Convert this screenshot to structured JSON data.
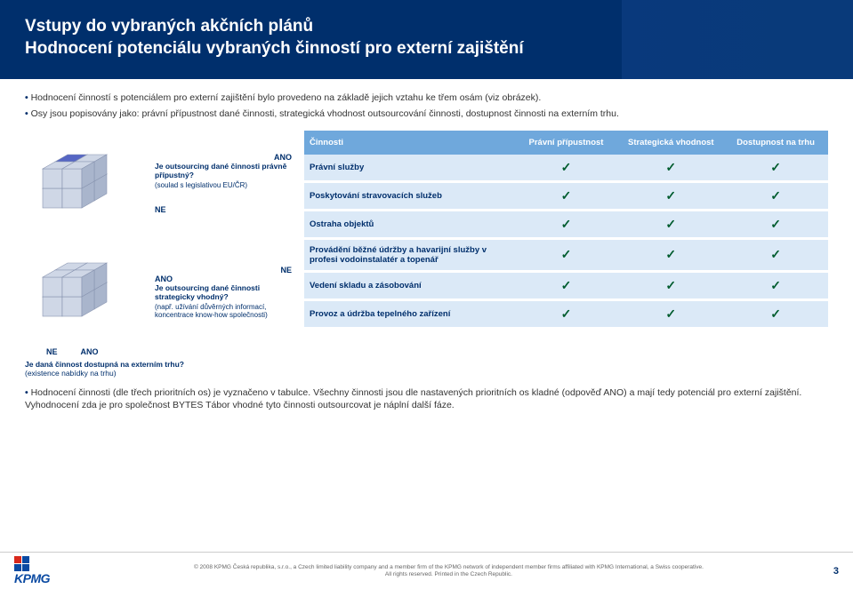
{
  "header": {
    "title_line1": "Vstupy do vybraných akčních plánů",
    "title_line2": "Hodnocení potenciálu vybraných činností pro externí zajištění"
  },
  "bullets": [
    "Hodnocení činností s potenciálem pro externí zajištění bylo provedeno na základě jejich vztahu ke třem osám (viz obrázek).",
    "Osy jsou popisovány jako: právní přípustnost dané činnosti, strategická vhodnost outsourcování činnosti, dostupnost činnosti na externím trhu."
  ],
  "cube": {
    "top": {
      "ano": "ANO",
      "ne": "NE",
      "q_title": "Je outsourcing dané činnosti právně přípustný?",
      "q_sub": "(soulad s legislativou EU/ČR)"
    },
    "bottom": {
      "ne": "NE",
      "ano": "ANO",
      "ne_left": "NE",
      "ano_right": "ANO",
      "q_title": "Je outsourcing dané činnosti strategicky vhodný?",
      "q_sub": "(např. užívání důvěrných informací, koncentrace know-how společnosti)",
      "avail_title": "Je daná činnost dostupná na externím trhu?",
      "avail_sub": "(existence nabídky na trhu)"
    },
    "colors": {
      "cube_fill": "#cfd7e6",
      "cube_dark": "#a9b5cc",
      "cube_highlight": "#3a4aa8",
      "cube_highlight_top": "#5666c4",
      "cube_highlight_side": "#2a3a88",
      "stroke": "#8894b0"
    }
  },
  "table": {
    "headers": [
      "Činnosti",
      "Právní přípustnost",
      "Strategická vhodnost",
      "Dostupnost na trhu"
    ],
    "rows": [
      {
        "activity": "Právní služby",
        "legal": true,
        "strategic": true,
        "market": true
      },
      {
        "activity": "Poskytování stravovacích služeb",
        "legal": true,
        "strategic": true,
        "market": true
      },
      {
        "activity": "Ostraha objektů",
        "legal": true,
        "strategic": true,
        "market": true
      },
      {
        "activity": "Provádění běžné údržby a havarijní služby v profesi vodoinstalatér a topenář",
        "legal": true,
        "strategic": true,
        "market": true
      },
      {
        "activity": "Vedení skladu a zásobování",
        "legal": true,
        "strategic": true,
        "market": true
      },
      {
        "activity": "Provoz a údržba tepelného zařízení",
        "legal": true,
        "strategic": true,
        "market": true
      }
    ],
    "check_glyph": "✓",
    "col_widths": [
      "40%",
      "20%",
      "20%",
      "20%"
    ]
  },
  "summary": "Hodnocení činnosti (dle třech prioritních os) je vyznačeno v tabulce. Všechny činnosti jsou dle nastavených prioritních os kladné (odpověď ANO) a mají tedy potenciál pro externí zajištění. Vyhodnocení zda je pro společnost BYTES Tábor vhodné tyto činnosti outsourcovat je náplní další fáze.",
  "footer": {
    "logo_text": "KPMG",
    "copyright_line1": "© 2008 KPMG Česká republika, s.r.o., a Czech limited liability company and a member firm of the KPMG network of independent member firms affiliated with KPMG International, a Swiss cooperative.",
    "copyright_line2": "All rights reserved. Printed in the Czech Republic.",
    "page": "3"
  }
}
